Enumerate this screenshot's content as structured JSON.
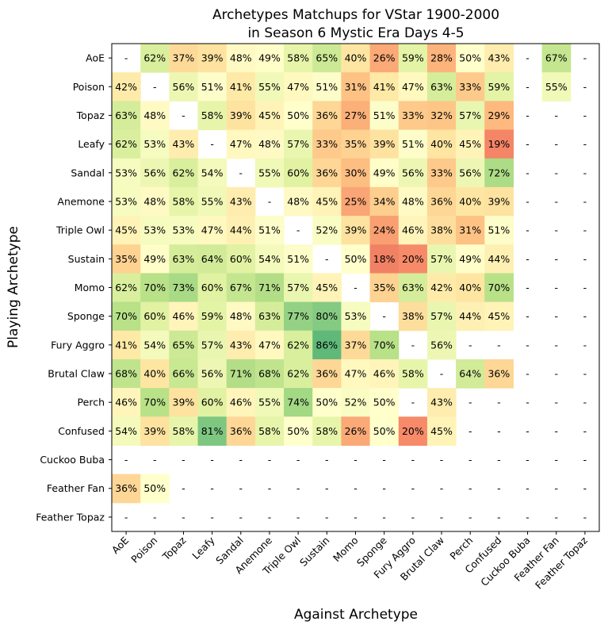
{
  "chart_data": {
    "type": "heatmap",
    "title": "Archetypes Matchups for VStar 1900-2000",
    "subtitle": "in Season 6 Mystic Era Days 4-5",
    "xlabel": "Against Archetype",
    "ylabel": "Playing Archetype",
    "columns": [
      "AoE",
      "Poison",
      "Topaz",
      "Leafy",
      "Sandal",
      "Anemone",
      "Triple Owl",
      "Sustain",
      "Momo",
      "Sponge",
      "Fury Aggro",
      "Brutal Claw",
      "Perch",
      "Confused",
      "Cuckoo Buba",
      "Feather Fan",
      "Feather Topaz"
    ],
    "rows": [
      "AoE",
      "Poison",
      "Topaz",
      "Leafy",
      "Sandal",
      "Anemone",
      "Triple Owl",
      "Sustain",
      "Momo",
      "Sponge",
      "Fury Aggro",
      "Brutal Claw",
      "Perch",
      "Confused",
      "Cuckoo Buba",
      "Feather Fan",
      "Feather Topaz"
    ],
    "values": [
      [
        null,
        62,
        37,
        39,
        48,
        49,
        58,
        65,
        40,
        26,
        59,
        28,
        50,
        43,
        null,
        67,
        null
      ],
      [
        42,
        null,
        56,
        51,
        41,
        55,
        47,
        51,
        31,
        41,
        47,
        63,
        33,
        59,
        null,
        55,
        null
      ],
      [
        63,
        48,
        null,
        58,
        39,
        45,
        50,
        36,
        27,
        51,
        33,
        32,
        57,
        29,
        null,
        null,
        null
      ],
      [
        62,
        53,
        43,
        null,
        47,
        48,
        57,
        33,
        35,
        39,
        51,
        40,
        45,
        19,
        null,
        null,
        null
      ],
      [
        53,
        56,
        62,
        54,
        null,
        55,
        60,
        36,
        30,
        49,
        56,
        33,
        56,
        72,
        null,
        null,
        null
      ],
      [
        53,
        48,
        58,
        55,
        43,
        null,
        48,
        45,
        25,
        34,
        48,
        36,
        40,
        39,
        null,
        null,
        null
      ],
      [
        45,
        53,
        53,
        47,
        44,
        51,
        null,
        52,
        39,
        24,
        46,
        38,
        31,
        51,
        null,
        null,
        null
      ],
      [
        35,
        49,
        63,
        64,
        60,
        54,
        51,
        null,
        50,
        18,
        20,
        57,
        49,
        44,
        null,
        null,
        null
      ],
      [
        62,
        70,
        73,
        60,
        67,
        71,
        57,
        45,
        null,
        35,
        63,
        42,
        40,
        70,
        null,
        null,
        null
      ],
      [
        70,
        60,
        46,
        59,
        48,
        63,
        77,
        80,
        53,
        null,
        38,
        57,
        44,
        45,
        null,
        null,
        null
      ],
      [
        41,
        54,
        65,
        57,
        43,
        47,
        62,
        86,
        37,
        70,
        null,
        56,
        null,
        null,
        null,
        null,
        null
      ],
      [
        68,
        40,
        66,
        56,
        71,
        68,
        62,
        36,
        47,
        46,
        58,
        null,
        64,
        36,
        null,
        null,
        null
      ],
      [
        46,
        70,
        39,
        60,
        46,
        55,
        74,
        50,
        52,
        50,
        null,
        43,
        null,
        null,
        null,
        null,
        null
      ],
      [
        54,
        39,
        58,
        81,
        36,
        58,
        50,
        58,
        26,
        50,
        20,
        45,
        null,
        null,
        null,
        null,
        null
      ],
      [
        null,
        null,
        null,
        null,
        null,
        null,
        null,
        null,
        null,
        null,
        null,
        null,
        null,
        null,
        null,
        null,
        null
      ],
      [
        36,
        50,
        null,
        null,
        null,
        null,
        null,
        null,
        null,
        null,
        null,
        null,
        null,
        null,
        null,
        null,
        null
      ],
      [
        null,
        null,
        null,
        null,
        null,
        null,
        null,
        null,
        null,
        null,
        null,
        null,
        null,
        null,
        null,
        null,
        null
      ]
    ],
    "value_suffix": "%",
    "missing_label": "-",
    "colormap": "RdYlGn",
    "value_range": [
      0,
      100
    ]
  }
}
